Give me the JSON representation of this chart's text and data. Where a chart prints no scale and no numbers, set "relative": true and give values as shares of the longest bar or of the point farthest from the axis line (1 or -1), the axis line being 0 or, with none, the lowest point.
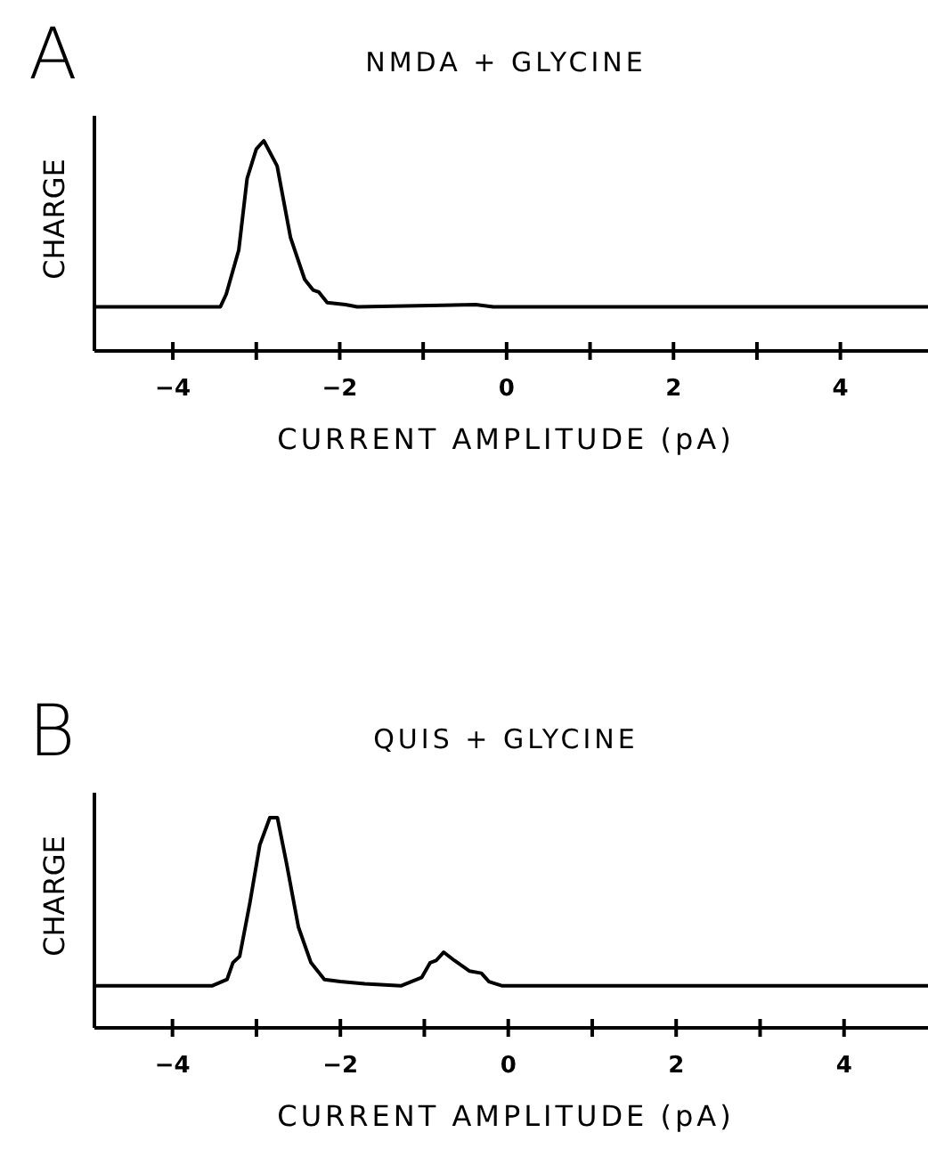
{
  "chart_data": [
    {
      "type": "line",
      "title": "NMDA + GLYCINE",
      "xlabel": "CURRENT AMPLITUDE (pA)",
      "ylabel": "CHARGE",
      "annotations": [
        "A"
      ],
      "relative": true,
      "xlim": [
        -4.94,
        5.05
      ],
      "xticks": [
        -4,
        {
          "value": -3,
          "label": null
        },
        -2,
        {
          "value": -1,
          "label": null
        },
        0,
        {
          "value": 1,
          "label": null
        },
        2,
        {
          "value": 3,
          "label": null
        },
        4
      ],
      "series": [
        {
          "color": "#000000",
          "x": [
            -4.94,
            -3.43,
            -3.36,
            -3.21,
            -3.11,
            -3.0,
            -2.91,
            -2.75,
            -2.59,
            -2.42,
            -2.32,
            -2.25,
            -2.15,
            -1.93,
            -1.79,
            -0.37,
            -0.16,
            5.05
          ],
          "values": [
            0.21,
            0.21,
            0.27,
            0.48,
            0.82,
            0.96,
            1.0,
            0.88,
            0.54,
            0.34,
            0.29,
            0.28,
            0.23,
            0.22,
            0.21,
            0.22,
            0.21,
            0.21
          ]
        }
      ]
    },
    {
      "type": "line",
      "title": "QUIS + GLYCINE",
      "xlabel": "CURRENT AMPLITUDE (pA)",
      "ylabel": "CHARGE",
      "annotations": [
        "B"
      ],
      "relative": true,
      "xlim": [
        -4.93,
        5.0
      ],
      "xticks": [
        -4,
        {
          "value": -3,
          "label": null
        },
        -2,
        {
          "value": -1,
          "label": null
        },
        0,
        {
          "value": 1,
          "label": null
        },
        2,
        {
          "value": 3,
          "label": null
        },
        4
      ],
      "series": [
        {
          "color": "#000000",
          "x": [
            -4.93,
            -3.53,
            -3.35,
            -3.28,
            -3.2,
            -3.08,
            -2.96,
            -2.84,
            -2.75,
            -2.64,
            -2.5,
            -2.35,
            -2.19,
            -2.0,
            -1.71,
            -1.28,
            -1.03,
            -0.93,
            -0.86,
            -0.77,
            -0.64,
            -0.46,
            -0.32,
            -0.23,
            -0.07,
            5.0
          ],
          "values": [
            0.2,
            0.2,
            0.23,
            0.31,
            0.34,
            0.59,
            0.87,
            1.0,
            1.0,
            0.78,
            0.48,
            0.31,
            0.23,
            0.22,
            0.21,
            0.2,
            0.24,
            0.31,
            0.32,
            0.36,
            0.32,
            0.27,
            0.26,
            0.22,
            0.2,
            0.2
          ]
        }
      ]
    }
  ]
}
